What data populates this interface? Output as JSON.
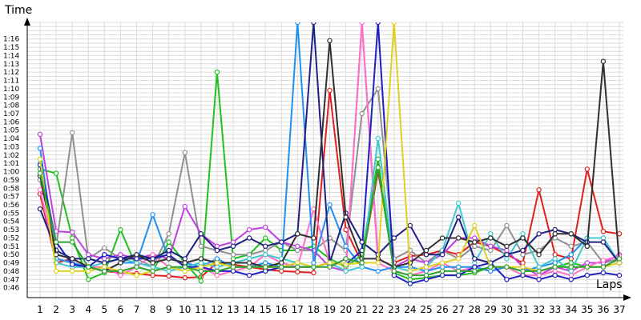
{
  "chart_data": {
    "type": "line",
    "xlabel": "Laps",
    "ylabel": "Time",
    "x": [
      1,
      2,
      3,
      4,
      5,
      6,
      7,
      8,
      9,
      10,
      11,
      12,
      13,
      14,
      15,
      16,
      17,
      18,
      19,
      20,
      21,
      22,
      23,
      24,
      25,
      26,
      27,
      28,
      29,
      30,
      31,
      32,
      33,
      34,
      35,
      36,
      37
    ],
    "xlim": [
      1,
      37
    ],
    "ylim_seconds": [
      45,
      78
    ],
    "y_tick_labels": [
      "0:46",
      "0:47",
      "0:48",
      "0:49",
      "0:50",
      "0:51",
      "0:52",
      "0:53",
      "0:54",
      "0:55",
      "0:56",
      "0:57",
      "0:58",
      "0:59",
      "1:00",
      "1:01",
      "1:02",
      "1:03",
      "1:04",
      "1:05",
      "1:06",
      "1:07",
      "1:08",
      "1:09",
      "1:10",
      "1:11",
      "1:12",
      "1:13",
      "1:14",
      "1:15",
      "1:16"
    ],
    "x_tick_labels": [
      "1",
      "2",
      "3",
      "4",
      "5",
      "6",
      "7",
      "8",
      "9",
      "10",
      "11",
      "12",
      "13",
      "14",
      "15",
      "16",
      "17",
      "18",
      "19",
      "20",
      "21",
      "22",
      "23",
      "24",
      "25",
      "26",
      "27",
      "28",
      "29",
      "30",
      "31",
      "32",
      "33",
      "34",
      "35",
      "36",
      "37"
    ],
    "grid": true,
    "legend": "none",
    "series": [
      {
        "color": "#e02020",
        "values": [
          57.3,
          49.0,
          49.5,
          48.5,
          48.0,
          47.8,
          47.7,
          47.5,
          47.4,
          47.2,
          47.3,
          49.0,
          48.8,
          48.5,
          48.2,
          48.0,
          47.9,
          47.8,
          69.8,
          53.0,
          49.0,
          60.0,
          49.0,
          49.8,
          50.0,
          50.5,
          50.0,
          51.5,
          51.0,
          50.0,
          49.0,
          57.8,
          50.0,
          49.5,
          60.3,
          52.8,
          52.5
        ]
      },
      {
        "color": "#20c020",
        "values": [
          60.3,
          59.8,
          52.0,
          47.0,
          47.8,
          53.0,
          48.5,
          48.0,
          51.5,
          49.0,
          46.8,
          72.0,
          49.5,
          50.0,
          52.0,
          50.5,
          50.5,
          51.0,
          49.5,
          48.5,
          50.0,
          61.5,
          47.8,
          47.0,
          47.2,
          47.5,
          47.5,
          47.8,
          48.5,
          48.5,
          48.0,
          48.0,
          48.5,
          49.0,
          48.5,
          48.5,
          49.5
        ]
      },
      {
        "color": "#909090",
        "values": [
          59.0,
          51.0,
          64.7,
          49.5,
          50.8,
          49.5,
          49.5,
          48.5,
          52.5,
          62.3,
          51.0,
          50.5,
          50.0,
          50.0,
          50.5,
          51.5,
          50.5,
          50.5,
          52.0,
          50.5,
          67.0,
          70.0,
          49.5,
          50.5,
          49.0,
          50.5,
          49.5,
          51.0,
          50.5,
          53.5,
          50.0,
          50.5,
          52.0,
          51.0,
          51.5,
          49.0,
          49.5
        ]
      },
      {
        "color": "#c040e0",
        "values": [
          64.5,
          52.8,
          52.7,
          50.0,
          49.5,
          50.0,
          49.5,
          50.0,
          49.5,
          55.8,
          52.5,
          51.0,
          51.5,
          53.0,
          53.3,
          51.5,
          51.0,
          50.5,
          48.5,
          48.0,
          78.0,
          49.5,
          48.5,
          49.5,
          49.0,
          50.0,
          52.0,
          52.0,
          51.0,
          50.5,
          48.5,
          47.5,
          48.5,
          48.0,
          49.0,
          49.0,
          50.0
        ]
      },
      {
        "color": "#ff70c8",
        "values": [
          57.8,
          49.5,
          49.0,
          48.5,
          48.5,
          47.5,
          48.5,
          50.0,
          48.5,
          48.0,
          48.5,
          47.5,
          48.0,
          48.5,
          50.0,
          49.0,
          48.5,
          55.5,
          49.0,
          48.0,
          78.0,
          49.0,
          48.0,
          47.5,
          48.0,
          49.0,
          48.0,
          48.5,
          48.0,
          48.5,
          47.5,
          47.5,
          48.0,
          47.5,
          48.5,
          49.3,
          49.8
        ]
      },
      {
        "color": "#2090f0",
        "values": [
          62.8,
          49.5,
          49.0,
          48.5,
          48.0,
          49.0,
          49.0,
          54.8,
          49.5,
          49.0,
          48.5,
          49.5,
          48.5,
          48.5,
          49.0,
          48.5,
          78.0,
          49.0,
          56.0,
          51.0,
          48.5,
          48.0,
          48.5,
          48.5,
          48.0,
          48.5,
          48.5,
          48.5,
          48.0,
          48.5,
          48.0,
          48.5,
          49.0,
          50.0,
          52.0,
          52.0,
          49.0
        ]
      },
      {
        "color": "#40c8d0",
        "values": [
          61.0,
          49.0,
          48.5,
          48.5,
          49.0,
          49.5,
          49.0,
          48.5,
          48.0,
          48.5,
          49.0,
          48.5,
          49.0,
          49.5,
          50.0,
          49.5,
          49.0,
          48.5,
          49.0,
          48.0,
          48.5,
          64.0,
          48.5,
          48.0,
          48.5,
          50.5,
          56.2,
          49.0,
          52.5,
          49.5,
          52.5,
          48.5,
          49.5,
          48.0,
          52.0,
          52.0,
          49.0
        ]
      },
      {
        "color": "#2020c0",
        "values": [
          60.8,
          51.5,
          48.8,
          48.5,
          50.0,
          49.5,
          49.5,
          49.5,
          50.0,
          48.5,
          48.5,
          48.0,
          48.0,
          47.5,
          48.0,
          48.5,
          48.5,
          48.5,
          49.0,
          48.8,
          50.5,
          78.0,
          47.5,
          46.5,
          47.0,
          47.5,
          47.5,
          48.5,
          49.0,
          47.0,
          47.5,
          47.0,
          47.5,
          47.0,
          47.5,
          47.8,
          47.5
        ]
      },
      {
        "color": "#202080",
        "values": [
          55.5,
          50.5,
          49.5,
          49.5,
          49.0,
          49.5,
          50.0,
          49.5,
          50.5,
          49.5,
          52.5,
          50.5,
          51.0,
          52.0,
          51.0,
          51.5,
          52.5,
          78.0,
          49.0,
          55.0,
          51.5,
          50.0,
          52.0,
          53.5,
          50.0,
          50.0,
          54.5,
          49.5,
          49.0,
          50.0,
          50.5,
          52.5,
          53.0,
          52.5,
          51.5,
          51.5,
          49.0
        ]
      },
      {
        "color": "#303030",
        "values": [
          59.5,
          50.0,
          49.5,
          48.5,
          48.0,
          49.0,
          50.0,
          49.0,
          49.5,
          49.0,
          49.5,
          49.0,
          49.0,
          49.0,
          48.5,
          49.0,
          52.5,
          52.0,
          75.8,
          54.5,
          49.5,
          49.5,
          48.5,
          49.0,
          50.5,
          52.0,
          52.0,
          51.5,
          52.0,
          51.0,
          52.0,
          50.0,
          52.5,
          52.5,
          51.0,
          73.3,
          49.0
        ]
      },
      {
        "color": "#e0d020",
        "values": [
          61.5,
          48.0,
          48.0,
          48.0,
          48.5,
          48.0,
          47.5,
          48.0,
          48.5,
          48.0,
          48.5,
          49.0,
          48.5,
          48.5,
          48.5,
          48.5,
          49.0,
          48.5,
          49.0,
          48.8,
          49.0,
          49.0,
          78.0,
          48.0,
          48.5,
          49.0,
          49.5,
          53.5,
          48.5,
          48.5,
          48.5,
          48.0,
          48.5,
          48.5,
          48.5,
          48.5,
          49.0
        ]
      },
      {
        "color": "#30a030",
        "values": [
          59.8,
          51.5,
          51.5,
          48.5,
          48.0,
          48.0,
          48.5,
          48.0,
          48.5,
          48.5,
          48.0,
          48.0,
          48.5,
          48.5,
          48.5,
          48.5,
          48.5,
          48.5,
          48.5,
          49.5,
          49.0,
          60.5,
          48.0,
          47.5,
          47.5,
          48.0,
          48.0,
          48.0,
          48.5,
          48.5,
          48.0,
          48.0,
          48.5,
          48.5,
          48.5,
          48.5,
          49.5
        ]
      }
    ]
  }
}
